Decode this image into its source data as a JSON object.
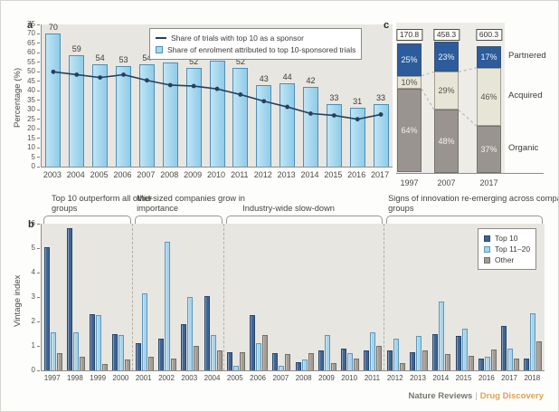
{
  "panels": {
    "a": {
      "label": "a"
    },
    "b": {
      "label": "b"
    },
    "c": {
      "label": "c"
    }
  },
  "footer": {
    "journal": "Nature Reviews",
    "separator": "|",
    "brand": "Drug Discovery",
    "brand_color": "#dfa253"
  },
  "chart_data": [
    {
      "id": "a",
      "type": "bar",
      "title": "",
      "xlabel": "",
      "ylabel": "Percentage (%)",
      "ylim": [
        0,
        75
      ],
      "yticks": [
        0,
        5,
        10,
        15,
        20,
        25,
        30,
        35,
        40,
        45,
        50,
        55,
        60,
        65,
        70,
        75
      ],
      "grid": false,
      "legend_position": "top-right-inside",
      "categories": [
        "2003",
        "2004",
        "2005",
        "2006",
        "2007",
        "2008",
        "2009",
        "2010",
        "2011",
        "2012",
        "2013",
        "2014",
        "2015",
        "2016",
        "2017"
      ],
      "series": [
        {
          "name": "Share of enrolment attributed to top 10-sponsored trials",
          "type": "bar",
          "color": "#a6d8ef",
          "border_color": "#4f8fb7",
          "values": [
            70,
            59,
            54,
            53,
            54,
            55,
            52,
            56,
            52,
            43,
            44,
            42,
            33,
            31,
            33
          ],
          "bar_labels_shown": true
        },
        {
          "name": "Share of trials with top 10 as a sponsor",
          "type": "line",
          "color": "#24415f",
          "marker": "circle",
          "values": [
            50,
            48.5,
            47,
            48.5,
            45.5,
            43,
            42.5,
            41,
            38,
            34.5,
            31.5,
            28,
            27,
            25,
            27.5
          ]
        }
      ]
    },
    {
      "id": "b",
      "type": "bar",
      "title": "",
      "xlabel": "",
      "ylabel": "Vintage index",
      "ylim": [
        0,
        6
      ],
      "yticks": [
        0,
        1,
        2,
        3,
        4,
        5,
        6
      ],
      "grid": false,
      "legend_position": "top-right-inside",
      "categories": [
        "1997",
        "1998",
        "1999",
        "2000",
        "2001",
        "2002",
        "2003",
        "2004",
        "2005",
        "2006",
        "2007",
        "2008",
        "2009",
        "2010",
        "2011",
        "2012",
        "2013",
        "2014",
        "2015",
        "2016",
        "2017",
        "2018"
      ],
      "series": [
        {
          "name": "Top 10",
          "color": "#3e6493",
          "border_color": "#27466b",
          "values": [
            5.05,
            5.8,
            2.3,
            1.5,
            1.1,
            1.3,
            1.9,
            3.05,
            0.75,
            2.25,
            0.7,
            0.35,
            0.8,
            0.9,
            0.8,
            0.8,
            0.75,
            1.5,
            1.4,
            0.5,
            1.8,
            0.5
          ]
        },
        {
          "name": "Top 11–20",
          "color": "#a8d3ea",
          "border_color": "#5e97bb",
          "values": [
            1.55,
            1.55,
            2.25,
            1.45,
            3.15,
            5.25,
            3.0,
            1.45,
            0.2,
            1.1,
            0.2,
            0.45,
            1.45,
            0.7,
            1.55,
            1.3,
            1.4,
            2.8,
            1.7,
            0.55,
            0.9,
            2.35
          ]
        },
        {
          "name": "Other",
          "color": "#a29c94",
          "border_color": "#746f67",
          "values": [
            0.7,
            0.55,
            0.25,
            0.45,
            0.55,
            0.5,
            1.0,
            0.8,
            0.75,
            1.45,
            0.65,
            0.7,
            0.3,
            0.5,
            1.0,
            0.3,
            0.8,
            0.65,
            0.6,
            0.85,
            0.5,
            1.2
          ]
        }
      ],
      "annotations": [
        {
          "label": "Top 10 outperform all other groups",
          "from": "1997",
          "to": "2000"
        },
        {
          "label": "Mid-sized companies grow in importance",
          "from": "2001",
          "to": "2004"
        },
        {
          "label": "Industry-wide slow-down",
          "from": "2005",
          "to": "2011"
        },
        {
          "label": "Signs of innovation re-emerging across company groups",
          "from": "2012",
          "to": "2018"
        }
      ]
    },
    {
      "id": "c",
      "type": "stacked-bar",
      "title": "",
      "categories": [
        "1997",
        "2007",
        "2017"
      ],
      "totals": [
        "170.8",
        "458.3",
        "600.3"
      ],
      "series": [
        {
          "name": "Partnered",
          "color": "#2c5c9c",
          "text_color": "#f2f4f8",
          "labels": [
            "25%",
            "23%",
            "17%"
          ],
          "values": [
            25,
            23,
            17
          ]
        },
        {
          "name": "Acquired",
          "color": "#e7e5d6",
          "text_color": "#55534c",
          "labels": [
            "10%",
            "29%",
            "46%"
          ],
          "values": [
            10,
            29,
            46
          ]
        },
        {
          "name": "Organic",
          "color": "#9a9490",
          "text_color": "#f2f1ee",
          "labels": [
            "64%",
            "48%",
            "37%"
          ],
          "values": [
            64,
            48,
            37
          ]
        }
      ]
    }
  ]
}
